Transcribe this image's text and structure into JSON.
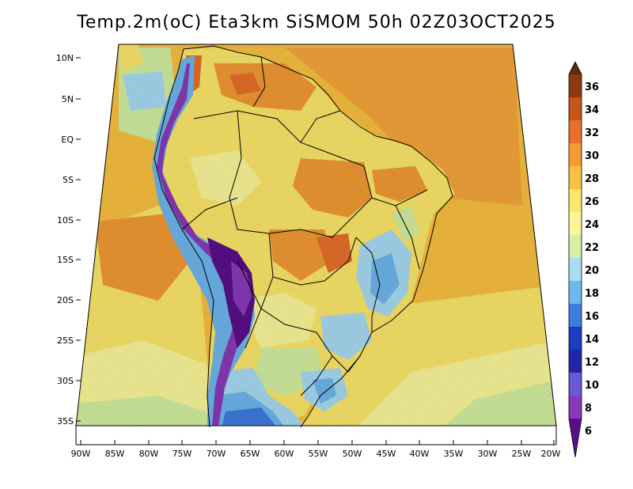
{
  "title": "Temp.2m(oC) Eta3km SiSMOM 50h 02Z03OCT2025",
  "map": {
    "lat_labels": [
      "10N",
      "5N",
      "EQ",
      "5S",
      "10S",
      "15S",
      "20S",
      "25S",
      "30S",
      "35S"
    ],
    "lon_labels": [
      "90W",
      "85W",
      "80W",
      "75W",
      "70W",
      "65W",
      "60W",
      "55W",
      "50W",
      "45W",
      "40W",
      "35W",
      "30W",
      "25W",
      "20W"
    ]
  },
  "colorbar": {
    "labels": [
      "36",
      "34",
      "32",
      "30",
      "28",
      "26",
      "24",
      "22",
      "20",
      "18",
      "16",
      "14",
      "12",
      "10",
      "8",
      "6"
    ],
    "colors": {
      "b36": "#5a2a10",
      "b34": "#8b3a10",
      "b32": "#c4561a",
      "b30": "#e8702a",
      "b28": "#f39a33",
      "b26": "#fac140",
      "b24": "#fde86a",
      "b22": "#fcf79a",
      "b20": "#d4f0a0",
      "b18": "#a8dcf4",
      "b16": "#6fb7ee",
      "b14": "#3e7de0",
      "b12": "#1a3ec0",
      "b10": "#2424a8",
      "b8": "#6a5ad8",
      "b6": "#8a3ab8",
      "bmin": "#5a0f8a"
    }
  }
}
